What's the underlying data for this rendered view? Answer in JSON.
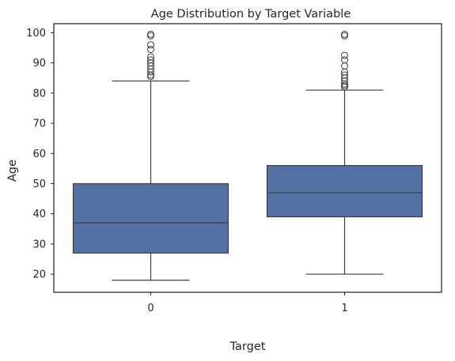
{
  "chart_data": {
    "type": "box",
    "title": "Age Distribution by Target Variable",
    "xlabel": "Target",
    "ylabel": "Age",
    "categories": [
      "0",
      "1"
    ],
    "ylim": [
      14,
      103
    ],
    "yticks": [
      20,
      30,
      40,
      50,
      60,
      70,
      80,
      90,
      100
    ],
    "grid": false,
    "boxes": [
      {
        "category": "0",
        "whisker_low": 18,
        "q1": 27,
        "median": 37,
        "q3": 50,
        "whisker_high": 84,
        "outliers": [
          85.5,
          86,
          87,
          88,
          89,
          90,
          91,
          92,
          94.5,
          96,
          99,
          99.5
        ]
      },
      {
        "category": "1",
        "whisker_low": 20,
        "q1": 39,
        "median": 47,
        "q3": 56,
        "whisker_high": 81,
        "outliers": [
          82,
          82.5,
          83,
          84,
          85,
          86,
          87,
          89,
          91,
          92.5,
          99,
          99.5
        ]
      }
    ],
    "box_color": "#5471a5",
    "line_color": "#3d3d3d"
  }
}
